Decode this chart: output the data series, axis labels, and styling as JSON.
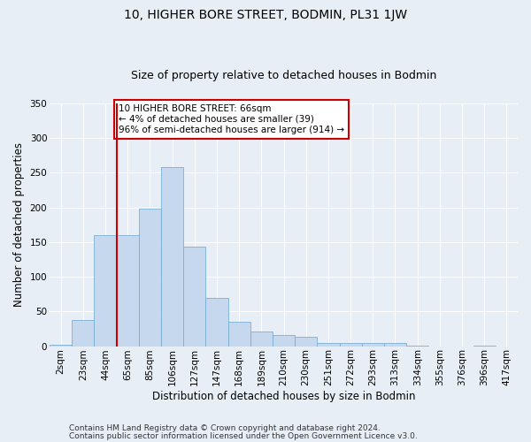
{
  "title": "10, HIGHER BORE STREET, BODMIN, PL31 1JW",
  "subtitle": "Size of property relative to detached houses in Bodmin",
  "xlabel": "Distribution of detached houses by size in Bodmin",
  "ylabel": "Number of detached properties",
  "categories": [
    "2sqm",
    "23sqm",
    "44sqm",
    "65sqm",
    "85sqm",
    "106sqm",
    "127sqm",
    "147sqm",
    "168sqm",
    "189sqm",
    "210sqm",
    "230sqm",
    "251sqm",
    "272sqm",
    "293sqm",
    "313sqm",
    "334sqm",
    "355sqm",
    "376sqm",
    "396sqm",
    "417sqm"
  ],
  "values": [
    2,
    38,
    160,
    160,
    198,
    258,
    143,
    70,
    35,
    21,
    16,
    13,
    5,
    5,
    5,
    4,
    1,
    0,
    0,
    1,
    0
  ],
  "bar_color": "#c5d8ed",
  "bar_edge_color": "#7aafd4",
  "vline_color": "#cc0000",
  "vline_index": 3,
  "ylim": [
    0,
    350
  ],
  "yticks": [
    0,
    50,
    100,
    150,
    200,
    250,
    300,
    350
  ],
  "annotation_text": "10 HIGHER BORE STREET: 66sqm\n← 4% of detached houses are smaller (39)\n96% of semi-detached houses are larger (914) →",
  "annotation_box_facecolor": "#ffffff",
  "annotation_box_edgecolor": "#cc0000",
  "footnote1": "Contains HM Land Registry data © Crown copyright and database right 2024.",
  "footnote2": "Contains public sector information licensed under the Open Government Licence v3.0.",
  "bg_color": "#e8eef6",
  "grid_color": "#ffffff",
  "title_fontsize": 10,
  "subtitle_fontsize": 9,
  "axis_label_fontsize": 8.5,
  "tick_fontsize": 7.5,
  "annotation_fontsize": 7.5,
  "footnote_fontsize": 6.5
}
